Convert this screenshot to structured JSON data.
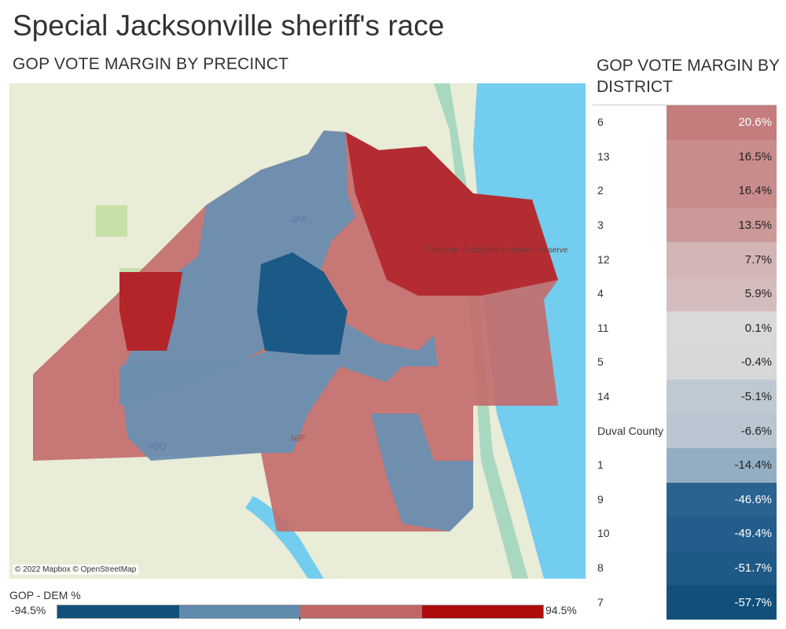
{
  "title": "Special Jacksonville sheriff's race",
  "map_subtitle": "GOP VOTE MARGIN BY PRECINCT",
  "table_subtitle": "GOP VOTE MARGIN BY DISTRICT",
  "map": {
    "credit": "© 2022 Mapbox © OpenStreetMap",
    "labels": {
      "jax": "JAX",
      "vqq": "VQQ",
      "nip": "NIP",
      "preserve": "Timucuan Ecological & Historic Preserve"
    }
  },
  "legend": {
    "title": "GOP - DEM %",
    "min": "-94.5%",
    "max": "94.5%",
    "colors": [
      "#124f7a",
      "#5e8aab",
      "#c16666",
      "#ad0c0c"
    ]
  },
  "districts": [
    {
      "label": "6",
      "value": "20.6%",
      "color": "#c47c7c",
      "light": true
    },
    {
      "label": "13",
      "value": "16.5%",
      "color": "#c98c8c"
    },
    {
      "label": "2",
      "value": "16.4%",
      "color": "#c98c8c"
    },
    {
      "label": "3",
      "value": "13.5%",
      "color": "#cc9999"
    },
    {
      "label": "12",
      "value": "7.7%",
      "color": "#d3b5b5"
    },
    {
      "label": "4",
      "value": "5.9%",
      "color": "#d5bcbc"
    },
    {
      "label": "11",
      "value": "0.1%",
      "color": "#d9d9d9"
    },
    {
      "label": "5",
      "value": "-0.4%",
      "color": "#d8d8d8"
    },
    {
      "label": "14",
      "value": "-5.1%",
      "color": "#bfc9d1"
    },
    {
      "label": "Duval County",
      "value": "-6.6%",
      "color": "#b9c6d1"
    },
    {
      "label": "1",
      "value": "-14.4%",
      "color": "#93aec3"
    },
    {
      "label": "9",
      "value": "-46.6%",
      "color": "#2a6290",
      "light": true
    },
    {
      "label": "10",
      "value": "-49.4%",
      "color": "#245d8b",
      "light": true
    },
    {
      "label": "8",
      "value": "-51.7%",
      "color": "#1f5986",
      "light": true
    },
    {
      "label": "7",
      "value": "-57.7%",
      "color": "#124f7a",
      "light": true
    }
  ]
}
